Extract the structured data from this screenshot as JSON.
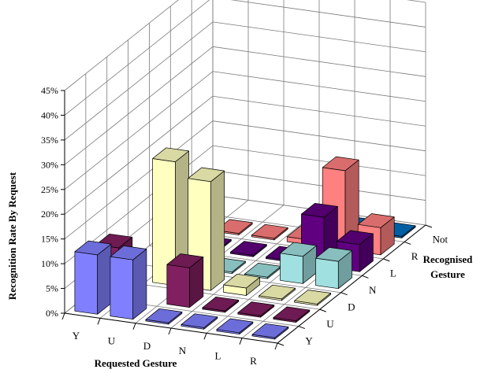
{
  "chart_data": {
    "type": "bar",
    "title": "",
    "zlabel": "Recognition Rate By Request",
    "xlabel": "Requested Gesture",
    "ylabel": "Recognised Gesture",
    "requested": [
      "Y",
      "U",
      "D",
      "N",
      "L",
      "R"
    ],
    "recognised": [
      "Y",
      "U",
      "D",
      "N",
      "L",
      "R",
      "Not"
    ],
    "zlim": [
      0,
      45
    ],
    "z_ticks": [
      "0%",
      "5%",
      "10%",
      "15%",
      "20%",
      "25%",
      "30%",
      "35%",
      "40%",
      "45%"
    ],
    "grid": true,
    "unit": "%",
    "series": [
      {
        "name": "Y",
        "color": "#8080ff",
        "values": [
          12,
          12,
          0.3,
          0.3,
          0.3,
          0.3
        ]
      },
      {
        "name": "U",
        "color": "#802060",
        "values": [
          0,
          0,
          8,
          0.3,
          0.3,
          0.3
        ]
      },
      {
        "name": "D",
        "color": "#ffffc0",
        "values": [
          0,
          0,
          0,
          1.5,
          0.3,
          0.3
        ]
      },
      {
        "name": "N",
        "color": "#a0e0e0",
        "values": [
          0,
          0.3,
          0.3,
          0.3,
          5.5,
          5.5
        ]
      },
      {
        "name": "L",
        "color": "#600080",
        "values": [
          0,
          0.3,
          0.3,
          0.3,
          10,
          5.5
        ]
      },
      {
        "name": "R",
        "color": "#ff8080",
        "values": [
          0,
          0.3,
          0.3,
          1,
          16,
          5.5
        ]
      },
      {
        "name": "Not",
        "color": "#0070c0",
        "values": [
          0,
          0,
          0,
          0.3,
          0.3,
          0.3
        ]
      }
    ],
    "extra_bars_front": [
      {
        "requested": "Y",
        "recognised": "U",
        "value": 10,
        "color": "#802060"
      },
      {
        "requested": "U",
        "recognised": "D",
        "value": 25,
        "color": "#ffffc0"
      },
      {
        "requested": "D",
        "recognised": "D",
        "value": 22,
        "color": "#ffffc0"
      },
      {
        "requested": "N",
        "recognised": "N",
        "value": 0,
        "color": "#a0e0e0"
      }
    ]
  }
}
